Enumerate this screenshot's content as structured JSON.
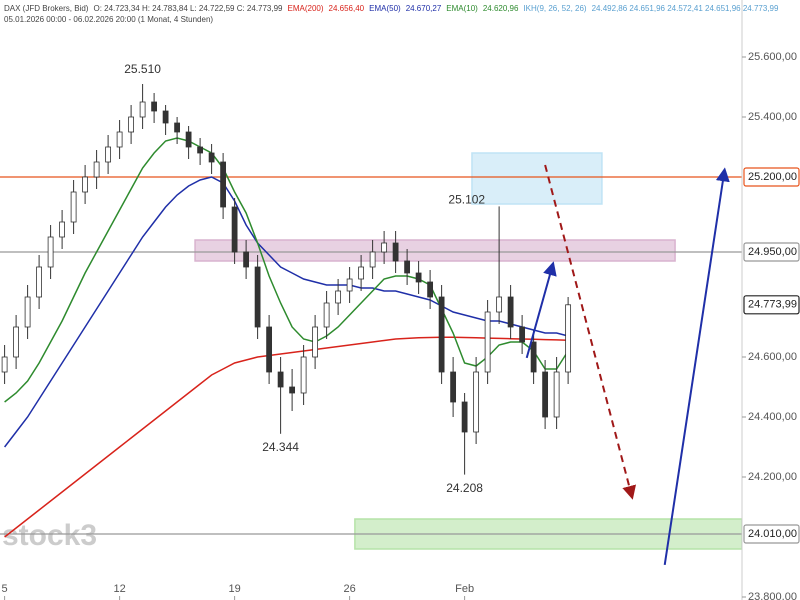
{
  "chart_data": {
    "type": "candlestick",
    "header": {
      "symbol": "DAX (JFD Brokers, Bid)",
      "ohlc": "O: 24.723,34  H: 24.783,84  L: 24.722,59  C: 24.773,99",
      "range": "05.01.2026 00:00 - 06.02.2026 20:00  (1 Monat, 4 Stunden)"
    },
    "indicator": {
      "name": "IKH(9, 26, 52, 26)",
      "label": "24.492,86  24.651,96  24.572,41  24.651,96  24.773,99",
      "color": "#5aa0d0"
    },
    "watermark": "stock3",
    "xlim": [
      -0.2,
      32.06
    ],
    "ylim": [
      23790,
      25790
    ],
    "xticks": [
      {
        "value": 0,
        "label": "5"
      },
      {
        "value": 5,
        "label": "12"
      },
      {
        "value": 10,
        "label": "19"
      },
      {
        "value": 15,
        "label": "26"
      },
      {
        "value": 20,
        "label": "Feb"
      }
    ],
    "yticks": [
      {
        "value": 25600,
        "label": "25.600,00"
      },
      {
        "value": 25400,
        "label": "25.400,00"
      },
      {
        "value": 24600,
        "label": "24.600,00"
      },
      {
        "value": 24400,
        "label": "24.400,00"
      },
      {
        "value": 24200,
        "label": "24.200,00"
      },
      {
        "value": 23800,
        "label": "23.800,00"
      }
    ],
    "x": [
      0,
      0.5,
      1,
      1.5,
      2,
      2.5,
      3,
      3.5,
      4,
      4.5,
      5,
      5.5,
      6,
      6.5,
      7,
      7.5,
      8,
      8.5,
      9,
      9.5,
      10,
      10.5,
      11,
      11.5,
      12,
      12.5,
      13,
      13.5,
      14,
      14.5,
      15,
      15.5,
      16,
      16.5,
      17,
      17.5,
      18,
      18.5,
      19,
      19.5,
      20,
      20.5,
      21,
      21.5,
      22,
      22.5,
      23,
      23.5,
      24,
      24.5
    ],
    "open": [
      24550,
      24600,
      24700,
      24800,
      24900,
      25000,
      25050,
      25150,
      25200,
      25250,
      25300,
      25350,
      25400,
      25450,
      25420,
      25380,
      25350,
      25300,
      25280,
      25250,
      25100,
      24950,
      24900,
      24700,
      24550,
      24500,
      24480,
      24600,
      24700,
      24780,
      24820,
      24860,
      24900,
      24950,
      24980,
      24920,
      24880,
      24850,
      24800,
      24550,
      24450,
      24350,
      24550,
      24750,
      24800,
      24700,
      24650,
      24550,
      24400,
      24550
    ],
    "high": [
      24640,
      24740,
      24840,
      24940,
      25040,
      25090,
      25190,
      25240,
      25290,
      25340,
      25390,
      25440,
      25510,
      25480,
      25440,
      25400,
      25370,
      25330,
      25310,
      25280,
      25130,
      24990,
      24940,
      24740,
      24600,
      24560,
      24640,
      24740,
      24820,
      24860,
      24900,
      24940,
      24990,
      25020,
      25020,
      24960,
      24920,
      24890,
      24840,
      24600,
      24480,
      24600,
      24790,
      25102,
      24840,
      24740,
      24690,
      24590,
      24600,
      24800
    ],
    "low": [
      24510,
      24560,
      24660,
      24760,
      24860,
      24960,
      25010,
      25110,
      25160,
      25210,
      25260,
      25310,
      25360,
      25380,
      25340,
      25310,
      25260,
      25240,
      25210,
      25060,
      24910,
      24860,
      24660,
      24510,
      24344,
      24420,
      24440,
      24560,
      24660,
      24740,
      24780,
      24820,
      24860,
      24910,
      24880,
      24840,
      24810,
      24760,
      24510,
      24400,
      24208,
      24310,
      24510,
      24710,
      24660,
      24610,
      24510,
      24360,
      24360,
      24510
    ],
    "close": [
      24600,
      24700,
      24800,
      24900,
      25000,
      25050,
      25150,
      25200,
      25250,
      25300,
      25350,
      25400,
      25450,
      25420,
      25380,
      25350,
      25300,
      25280,
      25250,
      25100,
      24950,
      24900,
      24700,
      24550,
      24500,
      24480,
      24600,
      24700,
      24780,
      24820,
      24860,
      24900,
      24950,
      24980,
      24920,
      24880,
      24850,
      24800,
      24550,
      24450,
      24350,
      24550,
      24750,
      24800,
      24700,
      24650,
      24550,
      24400,
      24550,
      24773.99
    ],
    "series": [
      {
        "name": "EMA(200)",
        "legend_label": "24.656,40",
        "color": "#d8231b",
        "values": [
          24000,
          24030,
          24060,
          24090,
          24120,
          24150,
          24180,
          24210,
          24240,
          24270,
          24300,
          24330,
          24360,
          24390,
          24420,
          24450,
          24480,
          24510,
          24540,
          24560,
          24580,
          24590,
          24600,
          24605,
          24610,
          24615,
          24620,
          24625,
          24630,
          24635,
          24640,
          24645,
          24650,
          24655,
          24660,
          24662,
          24664,
          24665,
          24666,
          24666,
          24665,
          24664,
          24663,
          24662,
          24661,
          24660,
          24659,
          24658,
          24657,
          24656
        ]
      },
      {
        "name": "EMA(50)",
        "legend_label": "24.670,27",
        "color": "#1f2fa8",
        "values": [
          24300,
          24350,
          24400,
          24460,
          24520,
          24580,
          24640,
          24700,
          24760,
          24820,
          24880,
          24940,
          25000,
          25050,
          25100,
          25140,
          25170,
          25190,
          25200,
          25180,
          25120,
          25040,
          24980,
          24940,
          24900,
          24880,
          24860,
          24850,
          24840,
          24840,
          24840,
          24830,
          24830,
          24820,
          24820,
          24810,
          24800,
          24790,
          24770,
          24750,
          24740,
          24730,
          24720,
          24720,
          24710,
          24700,
          24690,
          24680,
          24680,
          24670
        ]
      },
      {
        "name": "EMA(10)",
        "legend_label": "24.620,96",
        "color": "#2e8b2e",
        "values": [
          24450,
          24480,
          24520,
          24580,
          24650,
          24720,
          24800,
          24880,
          24950,
          25020,
          25090,
          25160,
          25230,
          25280,
          25320,
          25330,
          25320,
          25300,
          25280,
          25230,
          25150,
          25080,
          24980,
          24870,
          24780,
          24700,
          24660,
          24650,
          24670,
          24700,
          24740,
          24780,
          24820,
          24860,
          24870,
          24870,
          24860,
          24840,
          24760,
          24680,
          24580,
          24570,
          24600,
          24640,
          24650,
          24650,
          24620,
          24560,
          24560,
          24620
        ]
      }
    ],
    "price_lines": [
      {
        "value": 25200,
        "label": "25.200,00",
        "color": "#e8541c",
        "line": true
      },
      {
        "value": 24950,
        "label": "24.950,00",
        "color": "#999999",
        "line": true
      },
      {
        "value": 24773.99,
        "label": "24.773,99",
        "color": "#222222",
        "line": false
      },
      {
        "value": 24010,
        "label": "24.010,00",
        "color": "#999999",
        "line": true
      }
    ],
    "zones": [
      {
        "x": [
          8.28,
          29.15
        ],
        "y": [
          24920,
          24990
        ],
        "color": "#d9b3cf"
      },
      {
        "x": [
          20.32,
          25.97
        ],
        "y": [
          25110,
          25280
        ],
        "color": "#bfe3f5"
      },
      {
        "x": [
          15.23,
          32.06
        ],
        "y": [
          23960,
          24060
        ],
        "color": "#b5e3a8"
      }
    ],
    "arrows": [
      {
        "x": [
          23.5,
          27.28
        ],
        "y": [
          25240,
          24133
        ],
        "color": "#a01818",
        "dashed": true
      },
      {
        "x": [
          22.7,
          23.84
        ],
        "y": [
          24597,
          24910
        ],
        "color": "#1f2fa8",
        "dashed": false
      },
      {
        "x": [
          28.7,
          31.3
        ],
        "y": [
          23907,
          25223
        ],
        "color": "#1f2fa8",
        "dashed": false
      }
    ],
    "annotations": [
      {
        "x": 6,
        "value": 25510,
        "label": "25.510",
        "pos": "above"
      },
      {
        "x": 12,
        "value": 24344,
        "label": "24.344",
        "pos": "below"
      },
      {
        "x": 20,
        "value": 24208,
        "label": "24.208",
        "pos": "below"
      },
      {
        "x": 21.5,
        "value": 25102,
        "label": "25.102",
        "pos": "left"
      }
    ]
  }
}
